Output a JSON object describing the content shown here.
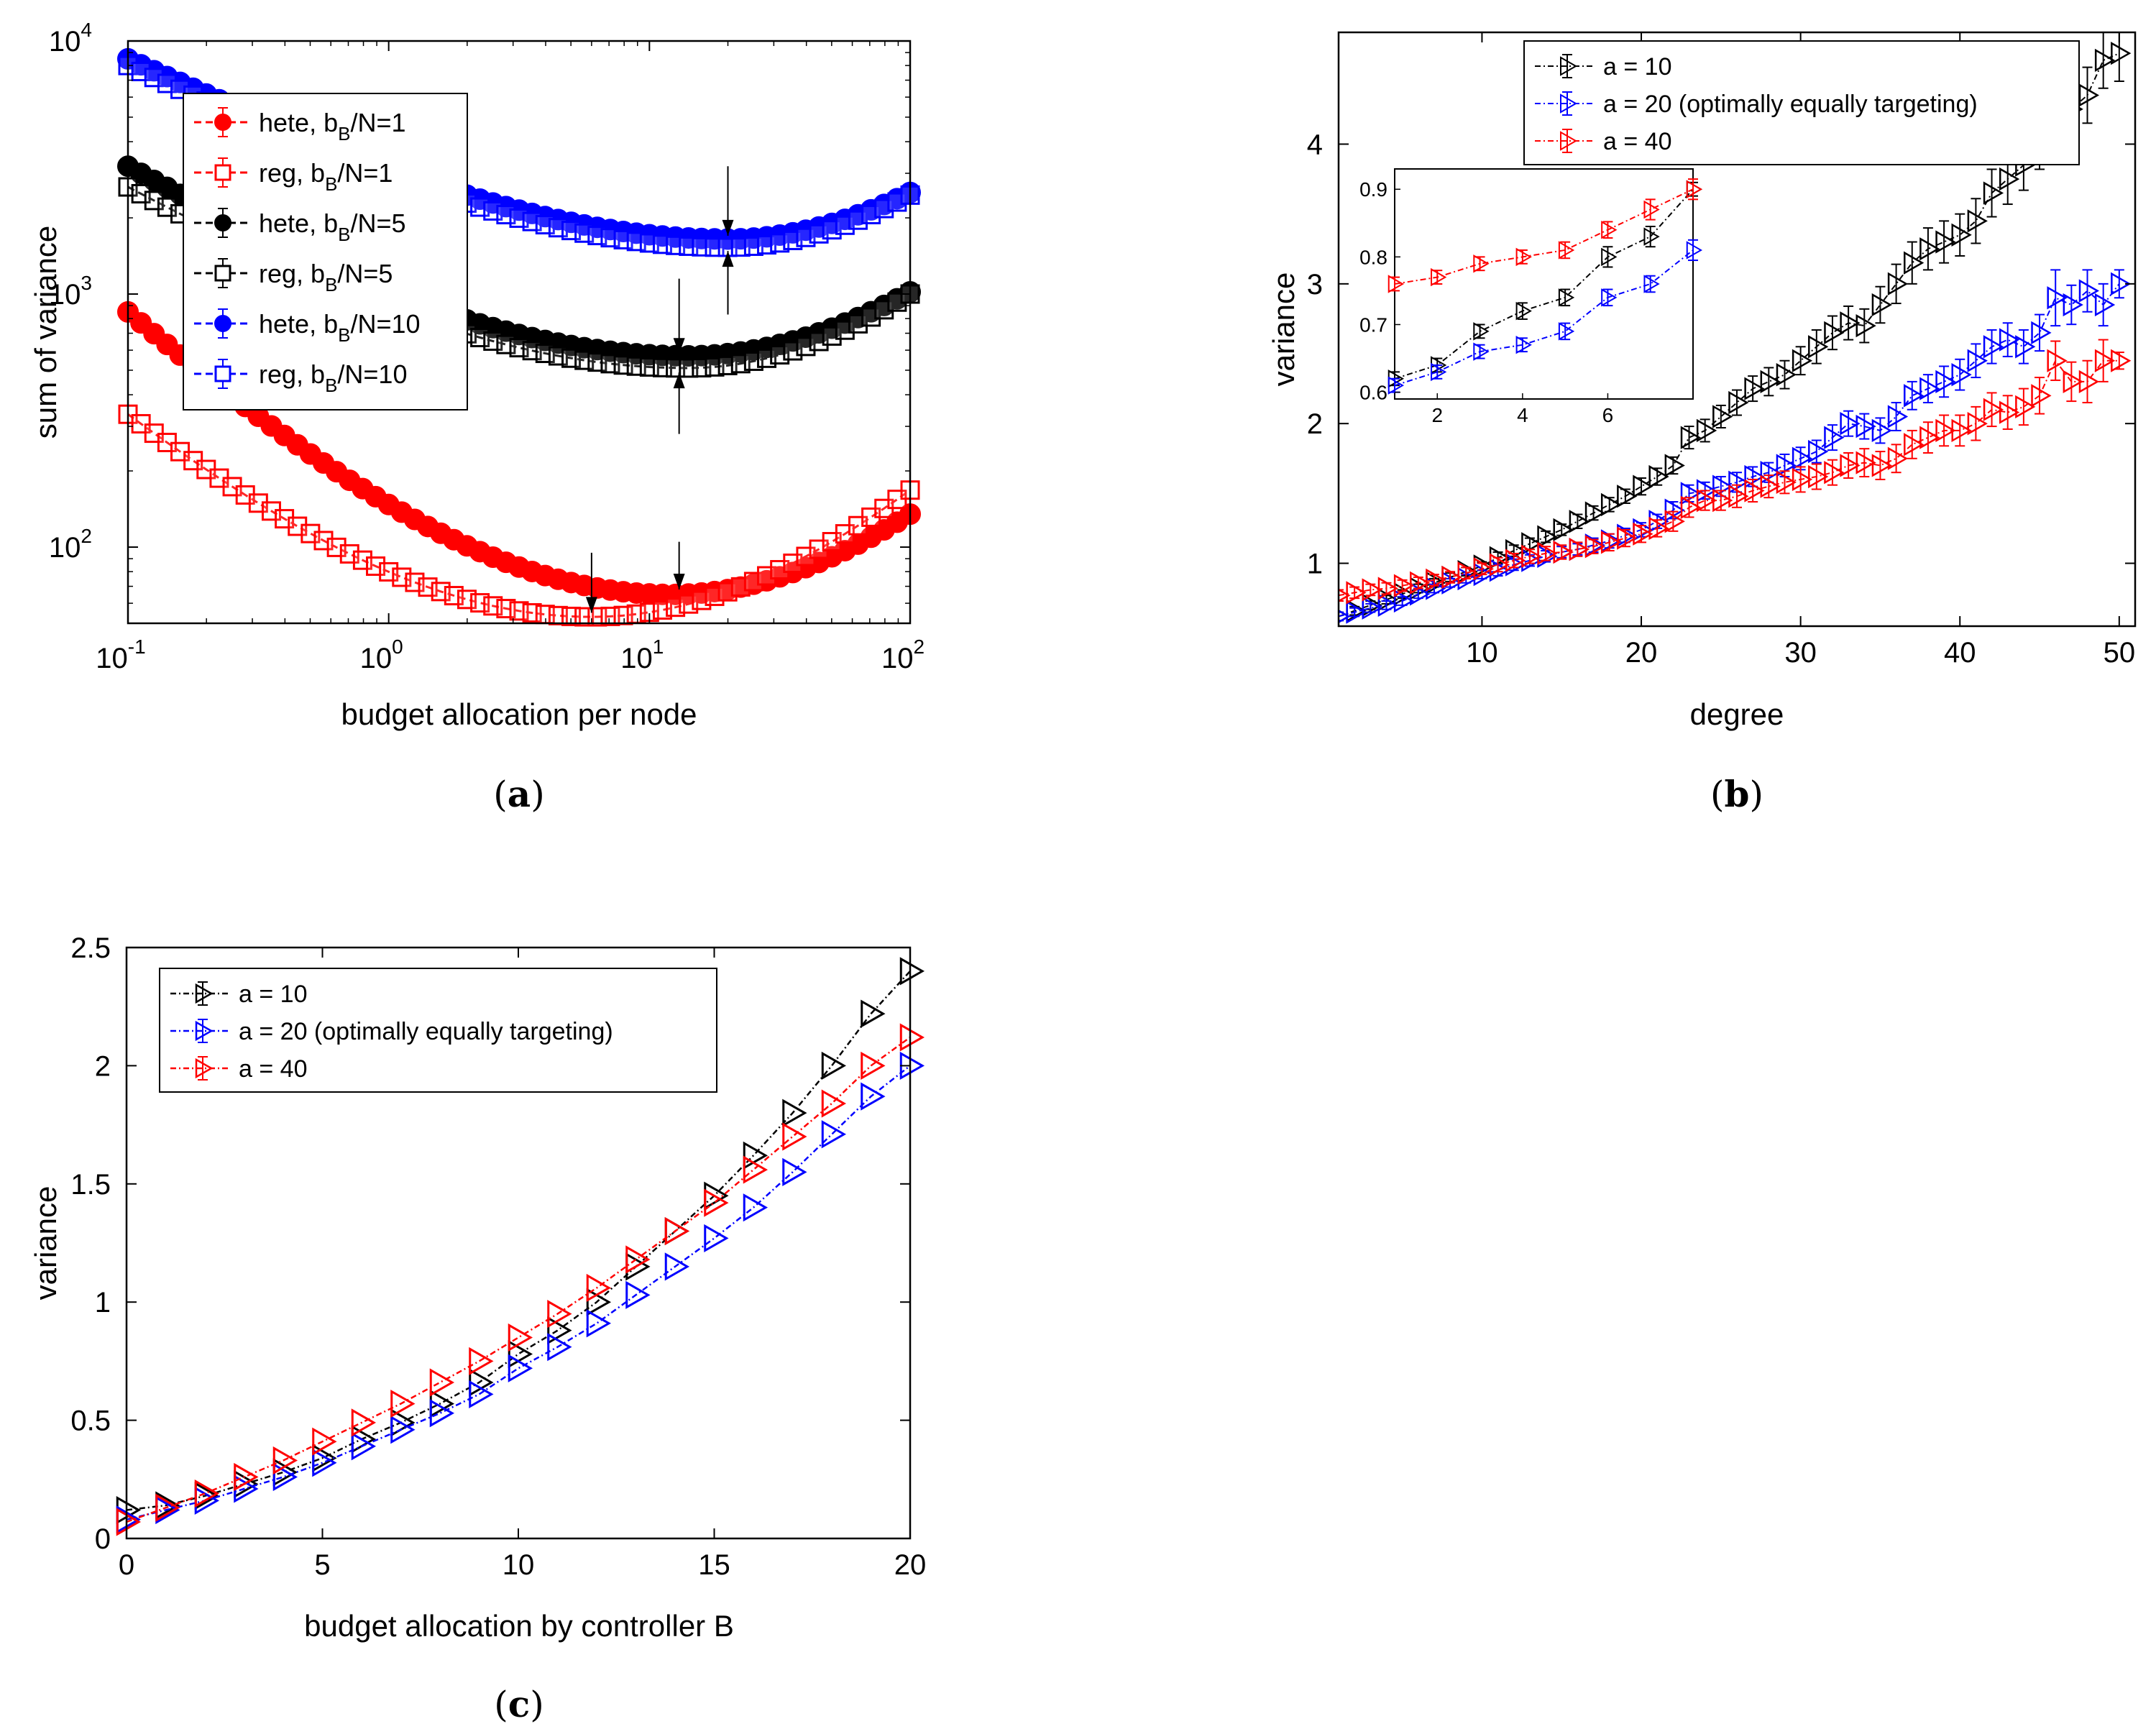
{
  "chart_data": [
    {
      "id": "a",
      "caption_letter": "a",
      "type": "line",
      "xlabel": "budget allocation per node",
      "ylabel": "sum of variance",
      "xscale": "log",
      "yscale": "log",
      "xlim": [
        0.1,
        100
      ],
      "ylim": [
        50,
        10000
      ],
      "xticks": [
        {
          "base": "10",
          "exp": "-1"
        },
        {
          "base": "10",
          "exp": "0"
        },
        {
          "base": "10",
          "exp": "1"
        },
        {
          "base": "10",
          "exp": "2"
        }
      ],
      "yticks": [
        {
          "base": "10",
          "exp": "2"
        },
        {
          "base": "10",
          "exp": "3"
        },
        {
          "base": "10",
          "exp": "4"
        }
      ],
      "legend_position": "top-left",
      "grid": false,
      "series": [
        {
          "name": "hete, b",
          "sub": "B",
          "suffix": "/N=1",
          "color": "#ff0000",
          "marker": "circle",
          "min_x": 12.0,
          "min_y": 65,
          "left_y": 850,
          "right_y": 135,
          "k": 1.35
        },
        {
          "name": "reg, b",
          "sub": "B",
          "suffix": "/N=1",
          "color": "#ff0000",
          "marker": "square",
          "min_x": 6.0,
          "min_y": 53,
          "left_y": 335,
          "right_y": 168,
          "k": 1.35
        },
        {
          "name": "hete, b",
          "sub": "B",
          "suffix": "/N=5",
          "color": "#000000",
          "marker": "circle",
          "min_x": 14.0,
          "min_y": 570,
          "left_y": 3200,
          "right_y": 1020,
          "k": 1.3
        },
        {
          "name": "reg, b",
          "sub": "B",
          "suffix": "/N=5",
          "color": "#000000",
          "marker": "square",
          "min_x": 14.0,
          "min_y": 510,
          "left_y": 2650,
          "right_y": 1000,
          "k": 1.3
        },
        {
          "name": "hete, b",
          "sub": "B",
          "suffix": "/N=10",
          "color": "#0000ff",
          "marker": "circle",
          "min_x": 20.0,
          "min_y": 1650,
          "left_y": 8500,
          "right_y": 2520,
          "k": 1.5
        },
        {
          "name": "reg, b",
          "sub": "B",
          "suffix": "/N=10",
          "color": "#0000ff",
          "marker": "square",
          "min_x": 20.0,
          "min_y": 1530,
          "left_y": 8000,
          "right_y": 2460,
          "k": 1.5
        }
      ],
      "arrows": [
        {
          "x": 6.0,
          "y_from": 95,
          "y_to": 55
        },
        {
          "x": 13.0,
          "y_from": 105,
          "y_to": 68
        },
        {
          "x": 13.0,
          "y_from": 1150,
          "y_to": 580
        },
        {
          "x": 13.0,
          "y_from": 280,
          "y_to": 490
        },
        {
          "x": 20.0,
          "y_from": 3200,
          "y_to": 1700
        },
        {
          "x": 20.0,
          "y_from": 830,
          "y_to": 1480
        }
      ]
    },
    {
      "id": "b",
      "caption_letter": "b",
      "type": "line",
      "xlabel": "degree",
      "ylabel": "variance",
      "xlim": [
        1,
        51
      ],
      "ylim": [
        0.55,
        4.8
      ],
      "xticks": [
        10,
        20,
        30,
        40,
        50
      ],
      "yticks": [
        1,
        2,
        3,
        4
      ],
      "legend_position": "top-right",
      "grid": false,
      "series": [
        {
          "name": "a = 10",
          "color": "#000000",
          "degree": [
            1,
            2,
            3,
            4,
            5,
            6,
            7,
            8,
            9,
            10,
            11,
            12,
            13,
            14,
            15,
            16,
            17,
            18,
            19,
            20,
            21,
            22,
            23,
            24,
            25,
            26,
            27,
            28,
            29,
            30,
            31,
            32,
            33,
            34,
            35,
            36,
            37,
            38,
            39,
            40,
            41,
            42,
            43,
            44,
            45,
            46,
            47,
            48,
            49,
            50
          ],
          "values": [
            0.62,
            0.66,
            0.7,
            0.74,
            0.78,
            0.82,
            0.86,
            0.9,
            0.94,
            0.98,
            1.04,
            1.09,
            1.14,
            1.19,
            1.24,
            1.3,
            1.36,
            1.42,
            1.48,
            1.55,
            1.62,
            1.7,
            1.9,
            1.95,
            2.05,
            2.15,
            2.25,
            2.3,
            2.35,
            2.45,
            2.55,
            2.65,
            2.72,
            2.7,
            2.85,
            3.0,
            3.15,
            3.25,
            3.3,
            3.35,
            3.45,
            3.65,
            3.75,
            3.85,
            4.0,
            4.15,
            4.25,
            4.35,
            4.6,
            4.65
          ],
          "errors": [
            0.03,
            0.03,
            0.03,
            0.03,
            0.03,
            0.03,
            0.03,
            0.03,
            0.03,
            0.03,
            0.04,
            0.04,
            0.04,
            0.04,
            0.04,
            0.05,
            0.05,
            0.05,
            0.05,
            0.06,
            0.06,
            0.06,
            0.08,
            0.08,
            0.08,
            0.09,
            0.09,
            0.1,
            0.1,
            0.1,
            0.12,
            0.12,
            0.12,
            0.12,
            0.13,
            0.14,
            0.15,
            0.15,
            0.15,
            0.15,
            0.16,
            0.17,
            0.18,
            0.18,
            0.18,
            0.18,
            0.2,
            0.2,
            0.2,
            0.2
          ]
        },
        {
          "name": "a = 20 (optimally equally targeting)",
          "color": "#0000ff",
          "degree": [
            1,
            2,
            3,
            4,
            5,
            6,
            7,
            8,
            9,
            10,
            11,
            12,
            13,
            14,
            15,
            16,
            17,
            18,
            19,
            20,
            21,
            22,
            23,
            24,
            25,
            26,
            27,
            28,
            29,
            30,
            31,
            32,
            33,
            34,
            35,
            36,
            37,
            38,
            39,
            40,
            41,
            42,
            43,
            44,
            45,
            46,
            47,
            48,
            49,
            50
          ],
          "values": [
            0.62,
            0.65,
            0.68,
            0.7,
            0.73,
            0.78,
            0.82,
            0.86,
            0.89,
            0.92,
            0.95,
            0.99,
            1.02,
            1.05,
            1.08,
            1.1,
            1.13,
            1.16,
            1.2,
            1.24,
            1.3,
            1.38,
            1.5,
            1.52,
            1.55,
            1.58,
            1.62,
            1.65,
            1.7,
            1.75,
            1.8,
            1.9,
            2.0,
            1.98,
            1.95,
            2.05,
            2.2,
            2.25,
            2.3,
            2.35,
            2.45,
            2.55,
            2.6,
            2.55,
            2.65,
            2.9,
            2.85,
            2.95,
            2.85,
            3.0
          ],
          "errors": [
            0.03,
            0.03,
            0.03,
            0.03,
            0.03,
            0.03,
            0.03,
            0.03,
            0.03,
            0.03,
            0.04,
            0.04,
            0.04,
            0.04,
            0.04,
            0.04,
            0.05,
            0.05,
            0.05,
            0.05,
            0.05,
            0.06,
            0.06,
            0.06,
            0.07,
            0.07,
            0.07,
            0.07,
            0.08,
            0.08,
            0.08,
            0.09,
            0.09,
            0.09,
            0.09,
            0.1,
            0.1,
            0.1,
            0.11,
            0.11,
            0.12,
            0.12,
            0.12,
            0.12,
            0.13,
            0.2,
            0.14,
            0.15,
            0.15,
            0.1
          ]
        },
        {
          "name": "a = 40",
          "color": "#ff0000",
          "degree": [
            1,
            2,
            3,
            4,
            5,
            6,
            7,
            8,
            9,
            10,
            11,
            12,
            13,
            14,
            15,
            16,
            17,
            18,
            19,
            20,
            21,
            22,
            23,
            24,
            25,
            26,
            27,
            28,
            29,
            30,
            31,
            32,
            33,
            34,
            35,
            36,
            37,
            38,
            39,
            40,
            41,
            42,
            43,
            44,
            45,
            46,
            47,
            48,
            49,
            50
          ],
          "values": [
            0.77,
            0.79,
            0.81,
            0.82,
            0.84,
            0.86,
            0.88,
            0.9,
            0.93,
            0.96,
            0.99,
            1.02,
            1.05,
            1.07,
            1.08,
            1.1,
            1.12,
            1.15,
            1.18,
            1.21,
            1.25,
            1.3,
            1.4,
            1.45,
            1.45,
            1.48,
            1.52,
            1.55,
            1.58,
            1.6,
            1.62,
            1.65,
            1.7,
            1.72,
            1.7,
            1.75,
            1.85,
            1.9,
            1.95,
            1.95,
            2.0,
            2.1,
            2.08,
            2.12,
            2.2,
            2.45,
            2.3,
            2.3,
            2.45,
            2.45
          ],
          "errors": [
            0.04,
            0.04,
            0.04,
            0.04,
            0.04,
            0.04,
            0.04,
            0.04,
            0.04,
            0.04,
            0.05,
            0.05,
            0.05,
            0.05,
            0.05,
            0.05,
            0.05,
            0.06,
            0.06,
            0.06,
            0.06,
            0.07,
            0.07,
            0.07,
            0.07,
            0.08,
            0.08,
            0.08,
            0.08,
            0.09,
            0.09,
            0.09,
            0.09,
            0.1,
            0.1,
            0.1,
            0.1,
            0.11,
            0.11,
            0.11,
            0.12,
            0.12,
            0.12,
            0.13,
            0.13,
            0.14,
            0.14,
            0.15,
            0.15,
            0.06
          ]
        }
      ],
      "inset": {
        "xlim": [
          1,
          8
        ],
        "ylim": [
          0.59,
          0.93
        ],
        "xticks": [
          2,
          4,
          6
        ],
        "yticks": [
          0.6,
          0.7,
          0.8,
          0.9
        ],
        "series": [
          {
            "color": "#000000",
            "degree": [
              1,
              2,
              3,
              4,
              5,
              6,
              7,
              8
            ],
            "values": [
              0.62,
              0.64,
              0.69,
              0.72,
              0.74,
              0.8,
              0.83,
              0.9
            ],
            "errors": [
              0.01,
              0.01,
              0.01,
              0.012,
              0.012,
              0.015,
              0.015,
              0.01
            ]
          },
          {
            "color": "#0000ff",
            "degree": [
              1,
              2,
              3,
              4,
              5,
              6,
              7,
              8
            ],
            "values": [
              0.61,
              0.63,
              0.66,
              0.67,
              0.69,
              0.74,
              0.76,
              0.81
            ],
            "errors": [
              0.01,
              0.01,
              0.01,
              0.01,
              0.012,
              0.012,
              0.012,
              0.015
            ]
          },
          {
            "color": "#ff0000",
            "degree": [
              1,
              2,
              3,
              4,
              5,
              6,
              7,
              8
            ],
            "values": [
              0.76,
              0.77,
              0.79,
              0.8,
              0.81,
              0.84,
              0.87,
              0.9
            ],
            "errors": [
              0.01,
              0.01,
              0.01,
              0.01,
              0.012,
              0.012,
              0.015,
              0.015
            ]
          }
        ]
      }
    },
    {
      "id": "c",
      "caption_letter": "c",
      "type": "line",
      "xlabel": "budget allocation by controller B",
      "ylabel": "variance",
      "xlim": [
        0,
        20
      ],
      "ylim": [
        0,
        2.5
      ],
      "xticks": [
        0,
        5,
        10,
        15,
        20
      ],
      "yticks": [
        0,
        0.5,
        1,
        1.5,
        2,
        2.5
      ],
      "legend_position": "top-left",
      "grid": false,
      "series": [
        {
          "name": "a = 10",
          "color": "#000000",
          "x": [
            0,
            1,
            2,
            3,
            4,
            5,
            6,
            7,
            8,
            9,
            10,
            11,
            12,
            13,
            14,
            15,
            16,
            17,
            18,
            19,
            20
          ],
          "values": [
            0.12,
            0.14,
            0.18,
            0.23,
            0.28,
            0.34,
            0.42,
            0.49,
            0.57,
            0.66,
            0.78,
            0.88,
            1.0,
            1.15,
            1.3,
            1.45,
            1.62,
            1.8,
            2.0,
            2.22,
            2.4
          ]
        },
        {
          "name": "a = 20 (optimally equally targeting)",
          "color": "#0000ff",
          "x": [
            0,
            1,
            2,
            3,
            4,
            5,
            6,
            7,
            8,
            9,
            10,
            11,
            12,
            13,
            14,
            15,
            16,
            17,
            18,
            19,
            20
          ],
          "values": [
            0.08,
            0.12,
            0.16,
            0.21,
            0.26,
            0.32,
            0.39,
            0.46,
            0.53,
            0.61,
            0.72,
            0.81,
            0.91,
            1.03,
            1.15,
            1.27,
            1.4,
            1.55,
            1.71,
            1.87,
            2.0
          ]
        },
        {
          "name": "a = 40",
          "color": "#ff0000",
          "x": [
            0,
            1,
            2,
            3,
            4,
            5,
            6,
            7,
            8,
            9,
            10,
            11,
            12,
            13,
            14,
            15,
            16,
            17,
            18,
            19,
            20
          ],
          "values": [
            0.07,
            0.13,
            0.19,
            0.26,
            0.33,
            0.41,
            0.49,
            0.57,
            0.66,
            0.75,
            0.85,
            0.95,
            1.06,
            1.18,
            1.3,
            1.42,
            1.56,
            1.7,
            1.84,
            2.0,
            2.12
          ]
        }
      ]
    }
  ]
}
